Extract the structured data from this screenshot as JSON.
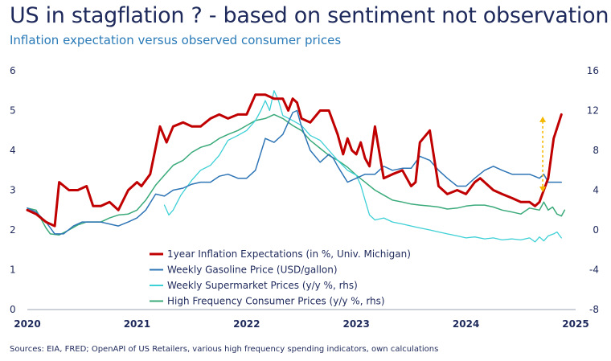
{
  "header": {
    "title": "US in stagflation ? - based on sentiment not observation",
    "subtitle": "Inflation expectation versus observed consumer prices"
  },
  "footer": {
    "source": "Sources: EIA, FRED; OpenAPI of US Retailers, various high frequency spending indicators, own calculations"
  },
  "chart_data": {
    "type": "line",
    "title": "US in stagflation ? - based on sentiment not observation",
    "subtitle": "Inflation expectation versus observed consumer prices",
    "xlim": [
      2020,
      2025
    ],
    "ylim": [
      0,
      6
    ],
    "y2lim": [
      -8,
      16
    ],
    "x_ticks": [
      "2020",
      "2021",
      "2022",
      "2023",
      "2024",
      "2025"
    ],
    "y_ticks": [
      "0",
      "1",
      "2",
      "3",
      "4",
      "5",
      "6"
    ],
    "y2_ticks": [
      "-8",
      "-4",
      "0",
      "4",
      "8",
      "12",
      "16"
    ],
    "grid": false,
    "legend_position": "bottom-center",
    "annotations": [
      {
        "type": "double-arrow",
        "x": 2024.7,
        "y_from": 2.95,
        "y_to": 4.85,
        "color": "#f5b800"
      }
    ],
    "series": [
      {
        "name": "1year Inflation Expectations (in %, Univ. Michigan)",
        "axis": "left",
        "color": "#c00000",
        "width": 3,
        "points": [
          [
            2020.0,
            2.5
          ],
          [
            2020.08,
            2.4
          ],
          [
            2020.17,
            2.2
          ],
          [
            2020.25,
            2.1
          ],
          [
            2020.29,
            3.2
          ],
          [
            2020.38,
            3.0
          ],
          [
            2020.46,
            3.0
          ],
          [
            2020.54,
            3.1
          ],
          [
            2020.6,
            2.6
          ],
          [
            2020.67,
            2.6
          ],
          [
            2020.75,
            2.7
          ],
          [
            2020.83,
            2.5
          ],
          [
            2020.92,
            3.0
          ],
          [
            2021.0,
            3.2
          ],
          [
            2021.04,
            3.1
          ],
          [
            2021.12,
            3.4
          ],
          [
            2021.21,
            4.6
          ],
          [
            2021.27,
            4.2
          ],
          [
            2021.33,
            4.6
          ],
          [
            2021.42,
            4.7
          ],
          [
            2021.5,
            4.6
          ],
          [
            2021.58,
            4.6
          ],
          [
            2021.67,
            4.8
          ],
          [
            2021.75,
            4.9
          ],
          [
            2021.83,
            4.8
          ],
          [
            2021.92,
            4.9
          ],
          [
            2022.0,
            4.9
          ],
          [
            2022.08,
            5.4
          ],
          [
            2022.17,
            5.4
          ],
          [
            2022.25,
            5.3
          ],
          [
            2022.33,
            5.3
          ],
          [
            2022.38,
            5.0
          ],
          [
            2022.42,
            5.3
          ],
          [
            2022.46,
            5.2
          ],
          [
            2022.5,
            4.8
          ],
          [
            2022.58,
            4.7
          ],
          [
            2022.67,
            5.0
          ],
          [
            2022.75,
            5.0
          ],
          [
            2022.83,
            4.4
          ],
          [
            2022.88,
            3.9
          ],
          [
            2022.92,
            4.3
          ],
          [
            2022.96,
            4.0
          ],
          [
            2023.0,
            3.9
          ],
          [
            2023.04,
            4.2
          ],
          [
            2023.08,
            3.8
          ],
          [
            2023.12,
            3.6
          ],
          [
            2023.17,
            4.6
          ],
          [
            2023.25,
            3.3
          ],
          [
            2023.33,
            3.4
          ],
          [
            2023.42,
            3.5
          ],
          [
            2023.5,
            3.1
          ],
          [
            2023.54,
            3.2
          ],
          [
            2023.58,
            4.2
          ],
          [
            2023.67,
            4.5
          ],
          [
            2023.75,
            3.1
          ],
          [
            2023.79,
            3.0
          ],
          [
            2023.83,
            2.9
          ],
          [
            2023.92,
            3.0
          ],
          [
            2024.0,
            2.9
          ],
          [
            2024.08,
            3.2
          ],
          [
            2024.13,
            3.3
          ],
          [
            2024.25,
            3.0
          ],
          [
            2024.33,
            2.9
          ],
          [
            2024.42,
            2.8
          ],
          [
            2024.5,
            2.7
          ],
          [
            2024.58,
            2.7
          ],
          [
            2024.63,
            2.6
          ],
          [
            2024.67,
            2.7
          ],
          [
            2024.71,
            3.0
          ],
          [
            2024.75,
            3.3
          ],
          [
            2024.8,
            4.3
          ],
          [
            2024.87,
            4.9
          ]
        ]
      },
      {
        "name": "Weekly Gasoline Price (USD/gallon)",
        "axis": "left",
        "color": "#2e75b6",
        "width": 1.5,
        "points": [
          [
            2020.0,
            2.55
          ],
          [
            2020.08,
            2.45
          ],
          [
            2020.17,
            2.2
          ],
          [
            2020.25,
            1.9
          ],
          [
            2020.33,
            1.9
          ],
          [
            2020.42,
            2.1
          ],
          [
            2020.5,
            2.2
          ],
          [
            2020.58,
            2.2
          ],
          [
            2020.67,
            2.2
          ],
          [
            2020.75,
            2.15
          ],
          [
            2020.83,
            2.1
          ],
          [
            2020.92,
            2.2
          ],
          [
            2021.0,
            2.3
          ],
          [
            2021.08,
            2.5
          ],
          [
            2021.17,
            2.9
          ],
          [
            2021.25,
            2.85
          ],
          [
            2021.33,
            3.0
          ],
          [
            2021.42,
            3.05
          ],
          [
            2021.5,
            3.15
          ],
          [
            2021.58,
            3.2
          ],
          [
            2021.67,
            3.2
          ],
          [
            2021.75,
            3.35
          ],
          [
            2021.83,
            3.4
          ],
          [
            2021.92,
            3.3
          ],
          [
            2022.0,
            3.3
          ],
          [
            2022.08,
            3.5
          ],
          [
            2022.17,
            4.3
          ],
          [
            2022.25,
            4.2
          ],
          [
            2022.33,
            4.4
          ],
          [
            2022.42,
            4.95
          ],
          [
            2022.46,
            5.0
          ],
          [
            2022.5,
            4.6
          ],
          [
            2022.58,
            4.0
          ],
          [
            2022.67,
            3.7
          ],
          [
            2022.75,
            3.9
          ],
          [
            2022.79,
            3.8
          ],
          [
            2022.83,
            3.6
          ],
          [
            2022.92,
            3.2
          ],
          [
            2023.0,
            3.3
          ],
          [
            2023.08,
            3.4
          ],
          [
            2023.17,
            3.4
          ],
          [
            2023.25,
            3.6
          ],
          [
            2023.33,
            3.5
          ],
          [
            2023.42,
            3.55
          ],
          [
            2023.5,
            3.55
          ],
          [
            2023.58,
            3.85
          ],
          [
            2023.67,
            3.75
          ],
          [
            2023.75,
            3.5
          ],
          [
            2023.83,
            3.3
          ],
          [
            2023.92,
            3.1
          ],
          [
            2024.0,
            3.1
          ],
          [
            2024.08,
            3.3
          ],
          [
            2024.17,
            3.5
          ],
          [
            2024.25,
            3.6
          ],
          [
            2024.33,
            3.5
          ],
          [
            2024.42,
            3.4
          ],
          [
            2024.5,
            3.4
          ],
          [
            2024.58,
            3.4
          ],
          [
            2024.67,
            3.3
          ],
          [
            2024.71,
            3.4
          ],
          [
            2024.75,
            3.2
          ],
          [
            2024.8,
            3.2
          ],
          [
            2024.87,
            3.2
          ]
        ]
      },
      {
        "name": "Weekly Supermarket Prices (y/y %, rhs)",
        "axis": "right",
        "color": "#3dd0d6",
        "width": 1.3,
        "points": [
          [
            2021.25,
            2.5
          ],
          [
            2021.29,
            1.5
          ],
          [
            2021.33,
            2.0
          ],
          [
            2021.4,
            3.5
          ],
          [
            2021.5,
            5.0
          ],
          [
            2021.58,
            6.0
          ],
          [
            2021.67,
            6.5
          ],
          [
            2021.75,
            7.5
          ],
          [
            2021.83,
            9.0
          ],
          [
            2021.92,
            9.5
          ],
          [
            2022.0,
            10.0
          ],
          [
            2022.08,
            11.0
          ],
          [
            2022.13,
            12.0
          ],
          [
            2022.17,
            13.0
          ],
          [
            2022.21,
            12.0
          ],
          [
            2022.25,
            14.0
          ],
          [
            2022.29,
            13.0
          ],
          [
            2022.33,
            11.5
          ],
          [
            2022.42,
            11.0
          ],
          [
            2022.5,
            10.5
          ],
          [
            2022.58,
            9.5
          ],
          [
            2022.67,
            9.0
          ],
          [
            2022.75,
            8.0
          ],
          [
            2022.83,
            7.0
          ],
          [
            2022.92,
            6.0
          ],
          [
            2023.0,
            5.5
          ],
          [
            2023.04,
            4.5
          ],
          [
            2023.08,
            3.0
          ],
          [
            2023.12,
            1.5
          ],
          [
            2023.17,
            1.0
          ],
          [
            2023.25,
            1.2
          ],
          [
            2023.33,
            0.8
          ],
          [
            2023.42,
            0.6
          ],
          [
            2023.5,
            0.4
          ],
          [
            2023.58,
            0.2
          ],
          [
            2023.67,
            0.0
          ],
          [
            2023.75,
            -0.2
          ],
          [
            2023.83,
            -0.4
          ],
          [
            2023.92,
            -0.6
          ],
          [
            2024.0,
            -0.8
          ],
          [
            2024.08,
            -0.7
          ],
          [
            2024.17,
            -0.9
          ],
          [
            2024.25,
            -0.8
          ],
          [
            2024.33,
            -1.0
          ],
          [
            2024.42,
            -0.9
          ],
          [
            2024.5,
            -1.0
          ],
          [
            2024.58,
            -0.8
          ],
          [
            2024.63,
            -1.2
          ],
          [
            2024.67,
            -0.7
          ],
          [
            2024.71,
            -1.1
          ],
          [
            2024.75,
            -0.6
          ],
          [
            2024.8,
            -0.4
          ],
          [
            2024.83,
            -0.2
          ],
          [
            2024.87,
            -0.8
          ]
        ]
      },
      {
        "name": "High Frequency Consumer Prices (y/y %, rhs)",
        "axis": "right",
        "color": "#3aaa7a",
        "width": 1.5,
        "points": [
          [
            2020.0,
            2.2
          ],
          [
            2020.08,
            2.0
          ],
          [
            2020.17,
            0.2
          ],
          [
            2020.21,
            -0.4
          ],
          [
            2020.29,
            -0.5
          ],
          [
            2020.38,
            0.0
          ],
          [
            2020.46,
            0.5
          ],
          [
            2020.54,
            0.8
          ],
          [
            2020.67,
            0.8
          ],
          [
            2020.75,
            1.2
          ],
          [
            2020.83,
            1.5
          ],
          [
            2020.92,
            1.6
          ],
          [
            2021.0,
            2.0
          ],
          [
            2021.08,
            3.0
          ],
          [
            2021.17,
            4.5
          ],
          [
            2021.25,
            5.5
          ],
          [
            2021.33,
            6.5
          ],
          [
            2021.42,
            7.0
          ],
          [
            2021.5,
            7.8
          ],
          [
            2021.58,
            8.3
          ],
          [
            2021.67,
            8.6
          ],
          [
            2021.75,
            9.2
          ],
          [
            2021.83,
            9.6
          ],
          [
            2021.92,
            10.0
          ],
          [
            2022.0,
            10.5
          ],
          [
            2022.08,
            11.0
          ],
          [
            2022.17,
            11.2
          ],
          [
            2022.25,
            11.6
          ],
          [
            2022.33,
            11.2
          ],
          [
            2022.42,
            10.5
          ],
          [
            2022.5,
            10.0
          ],
          [
            2022.58,
            9.0
          ],
          [
            2022.67,
            8.2
          ],
          [
            2022.75,
            7.5
          ],
          [
            2022.83,
            7.0
          ],
          [
            2022.92,
            6.3
          ],
          [
            2023.0,
            5.5
          ],
          [
            2023.08,
            4.8
          ],
          [
            2023.17,
            4.0
          ],
          [
            2023.25,
            3.5
          ],
          [
            2023.33,
            3.0
          ],
          [
            2023.42,
            2.8
          ],
          [
            2023.5,
            2.6
          ],
          [
            2023.58,
            2.5
          ],
          [
            2023.67,
            2.4
          ],
          [
            2023.75,
            2.3
          ],
          [
            2023.83,
            2.1
          ],
          [
            2023.92,
            2.2
          ],
          [
            2024.0,
            2.4
          ],
          [
            2024.08,
            2.5
          ],
          [
            2024.17,
            2.5
          ],
          [
            2024.25,
            2.3
          ],
          [
            2024.33,
            2.0
          ],
          [
            2024.42,
            1.8
          ],
          [
            2024.5,
            1.6
          ],
          [
            2024.58,
            2.2
          ],
          [
            2024.67,
            2.0
          ],
          [
            2024.71,
            2.8
          ],
          [
            2024.75,
            2.0
          ],
          [
            2024.79,
            2.3
          ],
          [
            2024.83,
            1.6
          ],
          [
            2024.87,
            1.4
          ],
          [
            2024.9,
            2.0
          ]
        ]
      }
    ]
  }
}
